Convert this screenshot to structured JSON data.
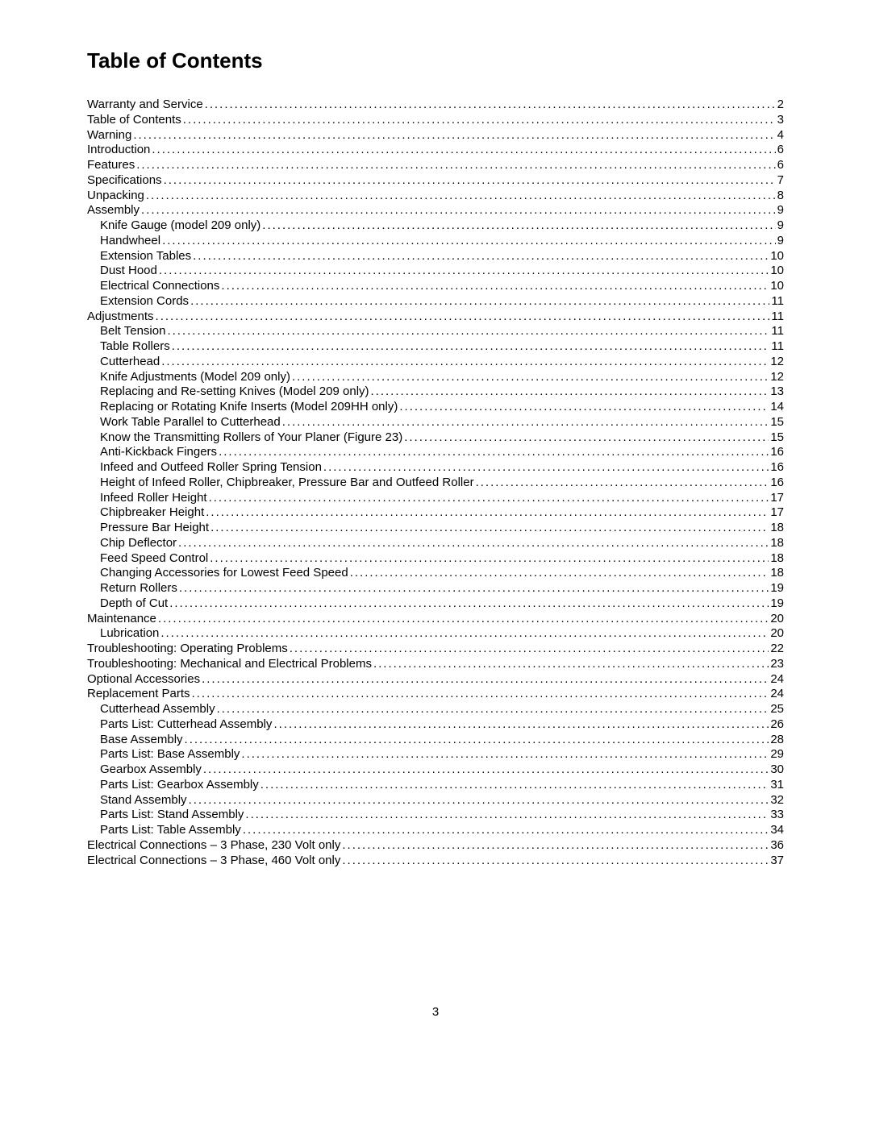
{
  "title": "Table of Contents",
  "page_number": "3",
  "toc": [
    {
      "label": "Warranty and Service",
      "page": "2",
      "level": 0
    },
    {
      "label": "Table of Contents",
      "page": "3",
      "level": 0
    },
    {
      "label": "Warning",
      "page": "4",
      "level": 0
    },
    {
      "label": "Introduction",
      "page": "6",
      "level": 0
    },
    {
      "label": "Features",
      "page": "6",
      "level": 0
    },
    {
      "label": "Specifications",
      "page": "7",
      "level": 0
    },
    {
      "label": "Unpacking",
      "page": "8",
      "level": 0
    },
    {
      "label": "Assembly",
      "page": "9",
      "level": 0
    },
    {
      "label": "Knife Gauge (model 209 only)",
      "page": "9",
      "level": 1
    },
    {
      "label": "Handwheel",
      "page": "9",
      "level": 1
    },
    {
      "label": "Extension Tables",
      "page": "10",
      "level": 1
    },
    {
      "label": "Dust Hood",
      "page": "10",
      "level": 1
    },
    {
      "label": "Electrical Connections",
      "page": "10",
      "level": 1
    },
    {
      "label": "Extension Cords",
      "page": "11",
      "level": 1
    },
    {
      "label": "Adjustments",
      "page": "11",
      "level": 0
    },
    {
      "label": "Belt Tension",
      "page": "11",
      "level": 1
    },
    {
      "label": "Table Rollers",
      "page": "11",
      "level": 1
    },
    {
      "label": "Cutterhead",
      "page": "12",
      "level": 1
    },
    {
      "label": "Knife Adjustments (Model 209 only)",
      "page": "12",
      "level": 1
    },
    {
      "label": "Replacing and Re-setting Knives (Model 209 only)",
      "page": "13",
      "level": 1
    },
    {
      "label": "Replacing or Rotating Knife Inserts (Model 209HH only)",
      "page": "14",
      "level": 1
    },
    {
      "label": "Work Table Parallel to Cutterhead",
      "page": "15",
      "level": 1
    },
    {
      "label": "Know the Transmitting Rollers of Your Planer  (Figure 23)",
      "page": "15",
      "level": 1
    },
    {
      "label": "Anti-Kickback Fingers",
      "page": "16",
      "level": 1
    },
    {
      "label": "Infeed and Outfeed Roller Spring Tension",
      "page": "16",
      "level": 1
    },
    {
      "label": "Height of Infeed Roller, Chipbreaker, Pressure Bar and Outfeed Roller",
      "page": "16",
      "level": 1
    },
    {
      "label": "Infeed Roller Height",
      "page": "17",
      "level": 1
    },
    {
      "label": "Chipbreaker Height",
      "page": "17",
      "level": 1
    },
    {
      "label": "Pressure Bar Height",
      "page": "18",
      "level": 1
    },
    {
      "label": "Chip Deflector",
      "page": "18",
      "level": 1
    },
    {
      "label": "Feed Speed Control",
      "page": "18",
      "level": 1
    },
    {
      "label": "Changing Accessories for Lowest Feed Speed",
      "page": "18",
      "level": 1
    },
    {
      "label": "Return Rollers",
      "page": "19",
      "level": 1
    },
    {
      "label": "Depth of Cut",
      "page": "19",
      "level": 1
    },
    {
      "label": "Maintenance",
      "page": "20",
      "level": 0
    },
    {
      "label": "Lubrication",
      "page": "20",
      "level": 1
    },
    {
      "label": "Troubleshooting: Operating Problems",
      "page": "22",
      "level": 0
    },
    {
      "label": "Troubleshooting: Mechanical and Electrical Problems",
      "page": "23",
      "level": 0
    },
    {
      "label": "Optional Accessories",
      "page": "24",
      "level": 0
    },
    {
      "label": "Replacement Parts",
      "page": "24",
      "level": 0
    },
    {
      "label": "Cutterhead Assembly",
      "page": "25",
      "level": 1
    },
    {
      "label": "Parts List: Cutterhead Assembly",
      "page": "26",
      "level": 1
    },
    {
      "label": "Base Assembly",
      "page": "28",
      "level": 1
    },
    {
      "label": "Parts List: Base Assembly",
      "page": "29",
      "level": 1
    },
    {
      "label": "Gearbox Assembly",
      "page": "30",
      "level": 1
    },
    {
      "label": "Parts List: Gearbox Assembly",
      "page": "31",
      "level": 1
    },
    {
      "label": "Stand Assembly",
      "page": "32",
      "level": 1
    },
    {
      "label": "Parts List: Stand Assembly",
      "page": "33",
      "level": 1
    },
    {
      "label": "Parts List: Table Assembly",
      "page": "34",
      "level": 1
    },
    {
      "label": "Electrical Connections – 3 Phase, 230 Volt only",
      "page": "36",
      "level": 0
    },
    {
      "label": "Electrical Connections – 3 Phase, 460 Volt only",
      "page": "37",
      "level": 0
    }
  ]
}
